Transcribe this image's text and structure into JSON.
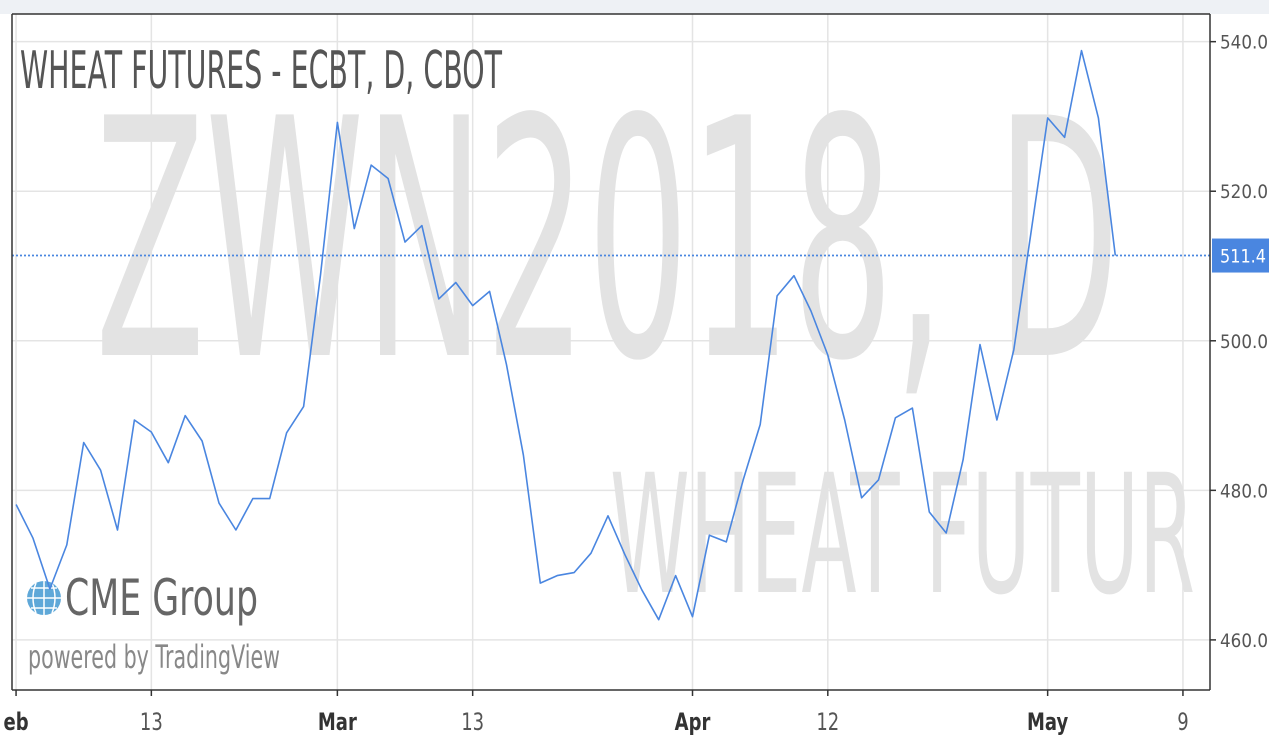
{
  "chart_data": {
    "type": "line",
    "title": "WHEAT FUTURES - ECBT, D, CBOT",
    "watermark": "ZWN2018, D",
    "watermark_sub": "WHEAT FUTUR",
    "logo": "CME Group",
    "credit": "powered by TradingView",
    "x": [
      0,
      1,
      2,
      3,
      4,
      5,
      6,
      7,
      8,
      9,
      10,
      11,
      12,
      13,
      14,
      15,
      16,
      17,
      18,
      19,
      20,
      21,
      22,
      23,
      24,
      25,
      26,
      27,
      28,
      29,
      30,
      31,
      32,
      33,
      34,
      35,
      36,
      37,
      38,
      39,
      40,
      41,
      42,
      43,
      44,
      45,
      46,
      47,
      48,
      49,
      50,
      51,
      52,
      53,
      54,
      55,
      56,
      57,
      58,
      59,
      60,
      61,
      62,
      63,
      64,
      65
    ],
    "series": [
      {
        "name": "ZWN2018",
        "color": "#4a86e0",
        "values": [
          478.1,
          473.6,
          466.8,
          472.7,
          486.4,
          482.7,
          474.7,
          489.4,
          487.8,
          483.7,
          490.0,
          486.6,
          478.3,
          474.7,
          478.9,
          478.9,
          487.7,
          491.2,
          508.8,
          529.2,
          515.0,
          523.5,
          521.7,
          513.2,
          515.4,
          505.6,
          507.8,
          504.7,
          506.6,
          496.8,
          484.7,
          467.6,
          468.6,
          469.0,
          471.6,
          476.6,
          471.4,
          466.7,
          462.7,
          468.6,
          463.1,
          474.0,
          473.1,
          481.4,
          488.8,
          506.0,
          508.7,
          504.0,
          498.1,
          489.4,
          479.0,
          481.4,
          489.7,
          491.0,
          477.1,
          474.3,
          484.1,
          499.5,
          489.4,
          498.8,
          514.2,
          529.8,
          527.2,
          538.8,
          529.8,
          511.4
        ]
      }
    ],
    "last_price": 511.4,
    "xlim": [
      -0.24,
      70.6
    ],
    "xticks": [
      {
        "value": 0,
        "label": "eb"
      },
      {
        "value": 8,
        "label": "13"
      },
      {
        "value": 19,
        "label": "Mar"
      },
      {
        "value": 27,
        "label": "13"
      },
      {
        "value": 40,
        "label": "Apr"
      },
      {
        "value": 48,
        "label": "12"
      },
      {
        "value": 61,
        "label": "May"
      },
      {
        "value": 69,
        "label": "9"
      }
    ],
    "ylim": [
      453.3,
      543.7
    ],
    "yticks": [
      {
        "value": 460,
        "label": "460.0"
      },
      {
        "value": 480,
        "label": "480.0"
      },
      {
        "value": 500,
        "label": "500.0"
      },
      {
        "value": 520,
        "label": "520.0"
      },
      {
        "value": 540,
        "label": "540.0"
      }
    ],
    "grid": true
  }
}
